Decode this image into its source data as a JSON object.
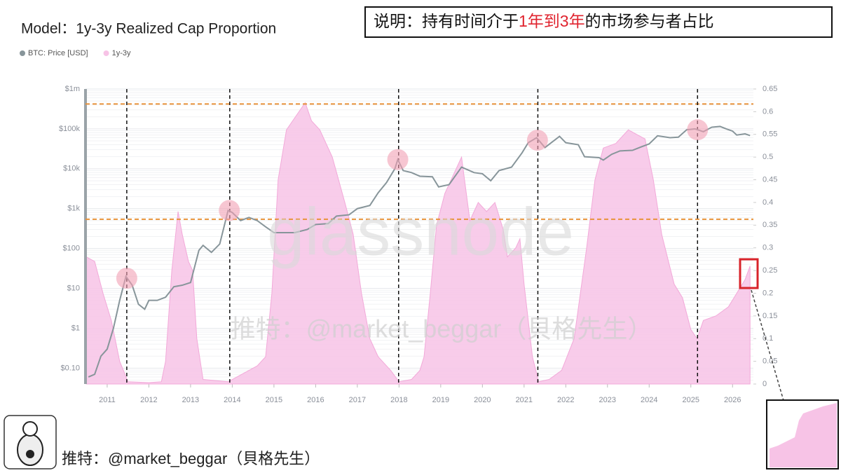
{
  "chart_data": {
    "type": "dual-axis-area-line",
    "title": "Model：1y-3y Realized Cap Proportion",
    "annotation_parts": [
      "说明：持有时间介于",
      "1年到3年",
      "的市场参与者占比"
    ],
    "watermark": "glassnode",
    "watermark_credit": "推特：@market_beggar（貝格先生）",
    "footer_credit": "推特：@market_beggar（貝格先生）",
    "xlim": [
      2010.48,
      2026.5
    ],
    "xticks": [
      2011,
      2012,
      2013,
      2014,
      2015,
      2016,
      2017,
      2018,
      2019,
      2020,
      2021,
      2022,
      2023,
      2024,
      2025,
      2026
    ],
    "log_y": true,
    "ylim": [
      0.04,
      1000000
    ],
    "yticks": [
      {
        "value": 0.1,
        "label": "$0.10"
      },
      {
        "value": 1,
        "label": "$1"
      },
      {
        "value": 10,
        "label": "$10"
      },
      {
        "value": 100,
        "label": "$100"
      },
      {
        "value": 1000,
        "label": "$1k"
      },
      {
        "value": 10000,
        "label": "$10k"
      },
      {
        "value": 100000,
        "label": "$100k"
      },
      {
        "value": 1000000,
        "label": "$1m"
      }
    ],
    "y2lim": [
      0,
      0.65
    ],
    "y2ticks": [
      0,
      0.05,
      0.1,
      0.15,
      0.2,
      0.25,
      0.3,
      0.35,
      0.4,
      0.45,
      0.5,
      0.55,
      0.6,
      0.65
    ],
    "grid": true,
    "series": [
      {
        "name": "BTC: Price [USD]",
        "color": "#87959a",
        "kind": "line",
        "axis": "y",
        "x": [
          2010.55,
          2010.7,
          2010.85,
          2011.0,
          2011.15,
          2011.3,
          2011.45,
          2011.6,
          2011.75,
          2011.9,
          2012.0,
          2012.2,
          2012.4,
          2012.6,
          2012.8,
          2013.0,
          2013.2,
          2013.3,
          2013.5,
          2013.7,
          2013.9,
          2014.0,
          2014.2,
          2014.4,
          2014.6,
          2014.8,
          2015.0,
          2015.2,
          2015.5,
          2015.8,
          2016.0,
          2016.3,
          2016.5,
          2016.8,
          2017.0,
          2017.3,
          2017.5,
          2017.7,
          2017.9,
          2017.97,
          2018.1,
          2018.3,
          2018.5,
          2018.8,
          2018.95,
          2019.2,
          2019.5,
          2019.8,
          2020.0,
          2020.2,
          2020.4,
          2020.7,
          2020.95,
          2021.1,
          2021.3,
          2021.5,
          2021.85,
          2022.0,
          2022.3,
          2022.45,
          2022.8,
          2022.9,
          2023.1,
          2023.3,
          2023.6,
          2023.8,
          2024.0,
          2024.2,
          2024.5,
          2024.7,
          2024.9,
          2025.1,
          2025.3,
          2025.5,
          2025.7,
          2025.85,
          2026.0,
          2026.1,
          2026.3,
          2026.42
        ],
        "values": [
          0.06,
          0.07,
          0.2,
          0.3,
          1,
          5,
          20,
          12,
          4,
          3,
          5,
          5,
          6,
          11,
          12,
          14,
          90,
          120,
          80,
          130,
          900,
          800,
          500,
          600,
          500,
          350,
          250,
          250,
          250,
          300,
          400,
          420,
          650,
          700,
          1000,
          1200,
          2500,
          4500,
          10000,
          17000,
          9000,
          8000,
          6500,
          6300,
          3500,
          4000,
          11000,
          8000,
          7500,
          5000,
          9000,
          11000,
          25000,
          45000,
          60000,
          34000,
          65000,
          45000,
          40000,
          20000,
          19000,
          16500,
          23000,
          28000,
          29000,
          35000,
          42000,
          67000,
          60000,
          62000,
          95000,
          100000,
          85000,
          110000,
          115000,
          100000,
          88000,
          70000,
          75000,
          68000
        ]
      },
      {
        "name": "1y-3y",
        "color": "#f7c3e6",
        "kind": "area",
        "axis": "y2",
        "x": [
          2010.5,
          2010.7,
          2010.9,
          2011.1,
          2011.3,
          2011.5,
          2012.0,
          2012.3,
          2012.4,
          2012.55,
          2012.7,
          2012.8,
          2012.95,
          2013.05,
          2013.15,
          2013.3,
          2013.9,
          2014.2,
          2014.4,
          2014.6,
          2014.8,
          2014.95,
          2015.1,
          2015.3,
          2015.6,
          2015.75,
          2015.9,
          2016.1,
          2016.4,
          2016.7,
          2016.9,
          2017.1,
          2017.3,
          2017.5,
          2017.8,
          2018.0,
          2018.3,
          2018.5,
          2018.6,
          2018.75,
          2018.9,
          2019.1,
          2019.3,
          2019.5,
          2019.7,
          2019.9,
          2020.1,
          2020.3,
          2020.5,
          2020.6,
          2020.8,
          2020.9,
          2021.0,
          2021.2,
          2021.35,
          2021.6,
          2021.9,
          2022.2,
          2022.5,
          2022.7,
          2022.9,
          2023.2,
          2023.5,
          2023.7,
          2023.9,
          2024.1,
          2024.3,
          2024.6,
          2024.8,
          2025.0,
          2025.15,
          2025.3,
          2025.6,
          2025.9,
          2026.1,
          2026.3,
          2026.42
        ],
        "values": [
          0.28,
          0.27,
          0.2,
          0.14,
          0.05,
          0.005,
          0.003,
          0.005,
          0.05,
          0.25,
          0.38,
          0.33,
          0.27,
          0.25,
          0.1,
          0.01,
          0.005,
          0.02,
          0.03,
          0.04,
          0.06,
          0.2,
          0.45,
          0.56,
          0.6,
          0.62,
          0.58,
          0.56,
          0.5,
          0.4,
          0.33,
          0.2,
          0.1,
          0.06,
          0.03,
          0.005,
          0.01,
          0.03,
          0.06,
          0.2,
          0.35,
          0.42,
          0.46,
          0.5,
          0.36,
          0.4,
          0.38,
          0.4,
          0.34,
          0.28,
          0.3,
          0.32,
          0.22,
          0.06,
          0.005,
          0.01,
          0.03,
          0.1,
          0.3,
          0.45,
          0.52,
          0.53,
          0.56,
          0.55,
          0.54,
          0.45,
          0.33,
          0.22,
          0.19,
          0.12,
          0.1,
          0.14,
          0.15,
          0.17,
          0.2,
          0.23,
          0.26
        ]
      }
    ],
    "reference_lines": {
      "axis": "y2",
      "color": "#e8923a",
      "values": [
        0.617,
        0.363
      ]
    },
    "vertical_lines": [
      2011.47,
      2013.94,
      2017.99,
      2021.33,
      2025.16
    ],
    "highlight_points": {
      "color": "#f2a0b4",
      "x": [
        2011.47,
        2013.93,
        2017.97,
        2021.32,
        2025.16
      ],
      "values": [
        18,
        900,
        17000,
        52000,
        95000
      ]
    }
  }
}
